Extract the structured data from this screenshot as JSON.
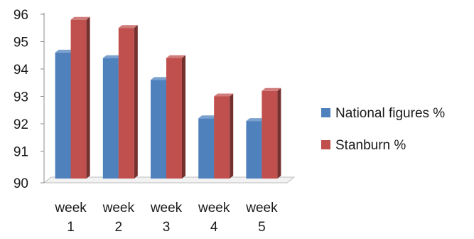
{
  "chart_data": {
    "type": "bar",
    "title": "",
    "xlabel": "",
    "ylabel": "",
    "categories": [
      [
        "week",
        "1"
      ],
      [
        "week",
        "2"
      ],
      [
        "week",
        "3"
      ],
      [
        "week",
        "4"
      ],
      [
        "week",
        "5"
      ]
    ],
    "ylim": [
      90,
      96
    ],
    "yticks": [
      "90",
      "91",
      "92",
      "93",
      "94",
      "95",
      "96"
    ],
    "style": "3d-clustered-column",
    "legend_position": "right",
    "series": [
      {
        "name": "National figures %",
        "color": "#4f81bd",
        "values": [
          94.6,
          94.4,
          93.6,
          92.2,
          92.1
        ]
      },
      {
        "name": "Stanburn %",
        "color": "#c0504d",
        "values": [
          95.8,
          95.5,
          94.4,
          93.0,
          93.2
        ]
      }
    ]
  }
}
